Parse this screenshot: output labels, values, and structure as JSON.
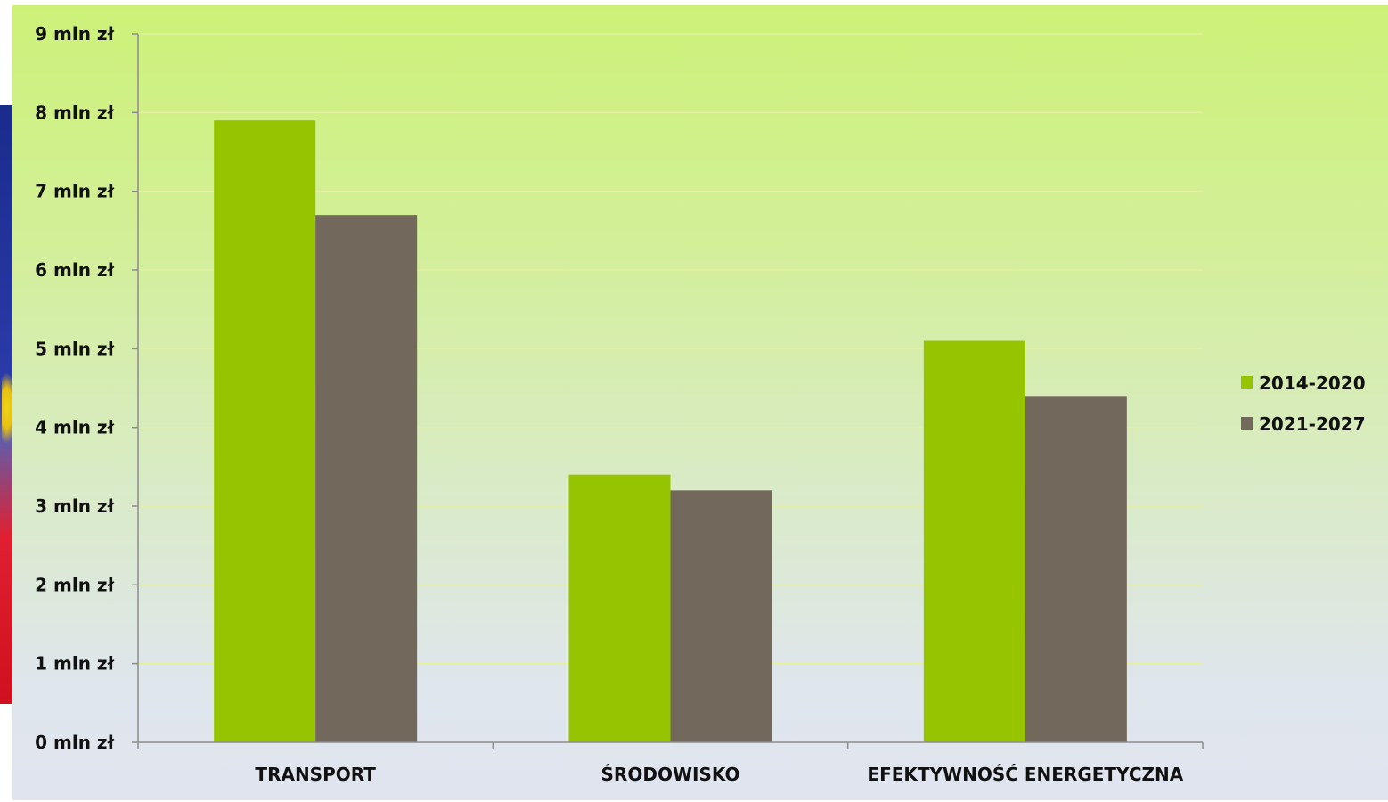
{
  "chart_data": {
    "type": "bar",
    "categories": [
      "TRANSPORT",
      "ŚRODOWISKO",
      "EFEKTYWNOŚĆ ENERGETYCZNA"
    ],
    "series": [
      {
        "name": "2014-2020",
        "values": [
          7.9,
          3.4,
          5.1
        ],
        "color": "#96c500"
      },
      {
        "name": "2021-2027",
        "values": [
          6.7,
          3.2,
          4.4
        ],
        "color": "#72685b"
      }
    ],
    "ylim": [
      0,
      9
    ],
    "yticks": [
      0,
      1,
      2,
      3,
      4,
      5,
      6,
      7,
      8,
      9
    ],
    "ytick_labels": [
      "0 mln zł",
      "1 mln zł",
      "2 mln zł",
      "3 mln zł",
      "4 mln zł",
      "5 mln zł",
      "6 mln zł",
      "7 mln zł",
      "8 mln zł",
      "9 mln zł"
    ],
    "title": "",
    "xlabel": "",
    "ylabel": "",
    "grid": true,
    "legend_position": "right"
  }
}
